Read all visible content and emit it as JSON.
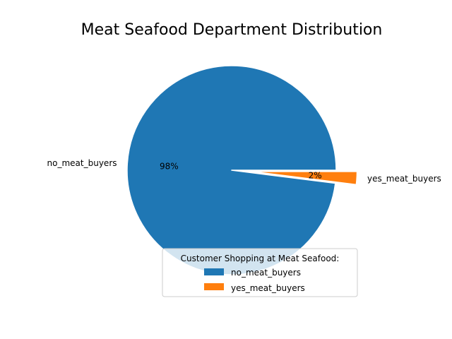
{
  "chart_data": {
    "type": "pie",
    "title": "Meat Seafood Department Distribution",
    "categories": [
      "no_meat_buyers",
      "yes_meat_buyers"
    ],
    "values": [
      98,
      2
    ],
    "percent_labels": [
      "98%",
      "2%"
    ],
    "explode": [
      0,
      0.2
    ],
    "colors": [
      "#1f77b4",
      "#ff7f0e"
    ],
    "legend": {
      "title": "Customer Shopping at Meat Seafood:",
      "entries": [
        "no_meat_buyers",
        "yes_meat_buyers"
      ],
      "placement": "lower-right"
    }
  }
}
